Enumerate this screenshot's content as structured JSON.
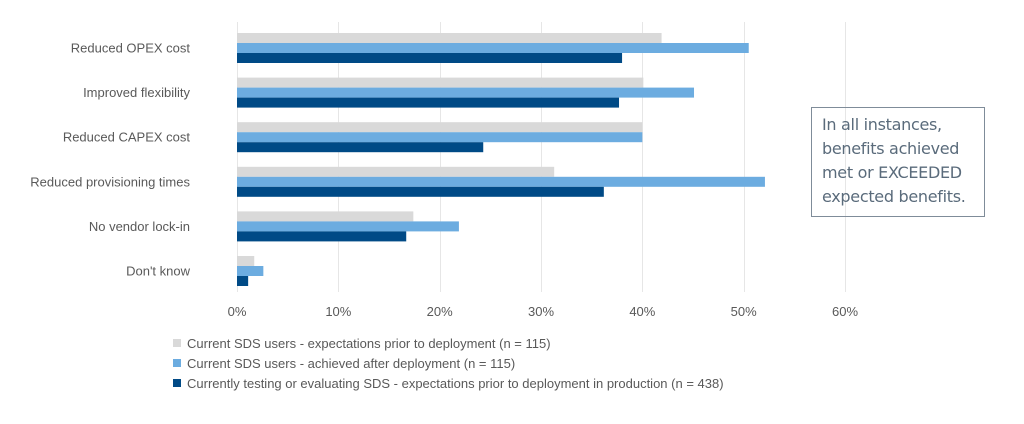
{
  "chart_data": {
    "type": "bar",
    "orientation": "horizontal",
    "title": "",
    "xlabel": "",
    "ylabel": "",
    "categories": [
      "Reduced OPEX cost",
      "Improved flexibility",
      "Reduced CAPEX cost",
      "Reduced provisioning times",
      "No vendor lock-in",
      "Don't know"
    ],
    "series": [
      {
        "name": "Current SDS users - expectations prior to deployment (n = 115)",
        "color": "#d9d9d9",
        "values": [
          41.9,
          40.1,
          40.0,
          31.3,
          17.4,
          1.7
        ]
      },
      {
        "name": "Current SDS users - achieved after deployment (n = 115)",
        "color": "#6cace0",
        "values": [
          50.5,
          45.1,
          40.0,
          52.1,
          21.9,
          2.6
        ]
      },
      {
        "name": "Currently testing or evaluating SDS - expectations prior to deployment in production (n = 438)",
        "color": "#004a86",
        "values": [
          38.0,
          37.7,
          24.3,
          36.2,
          16.7,
          1.1
        ]
      }
    ],
    "xlim": [
      0,
      60
    ],
    "xticks": [
      0,
      10,
      20,
      30,
      40,
      50,
      60
    ],
    "xtick_labels": [
      "0%",
      "10%",
      "20%",
      "30%",
      "40%",
      "50%",
      "60%"
    ],
    "unit": "%",
    "grid": true,
    "legend_position": "bottom-left"
  },
  "callout": {
    "lines": [
      "In all instances,",
      "benefits achieved",
      "met or EXCEEDED",
      "expected benefits."
    ]
  }
}
